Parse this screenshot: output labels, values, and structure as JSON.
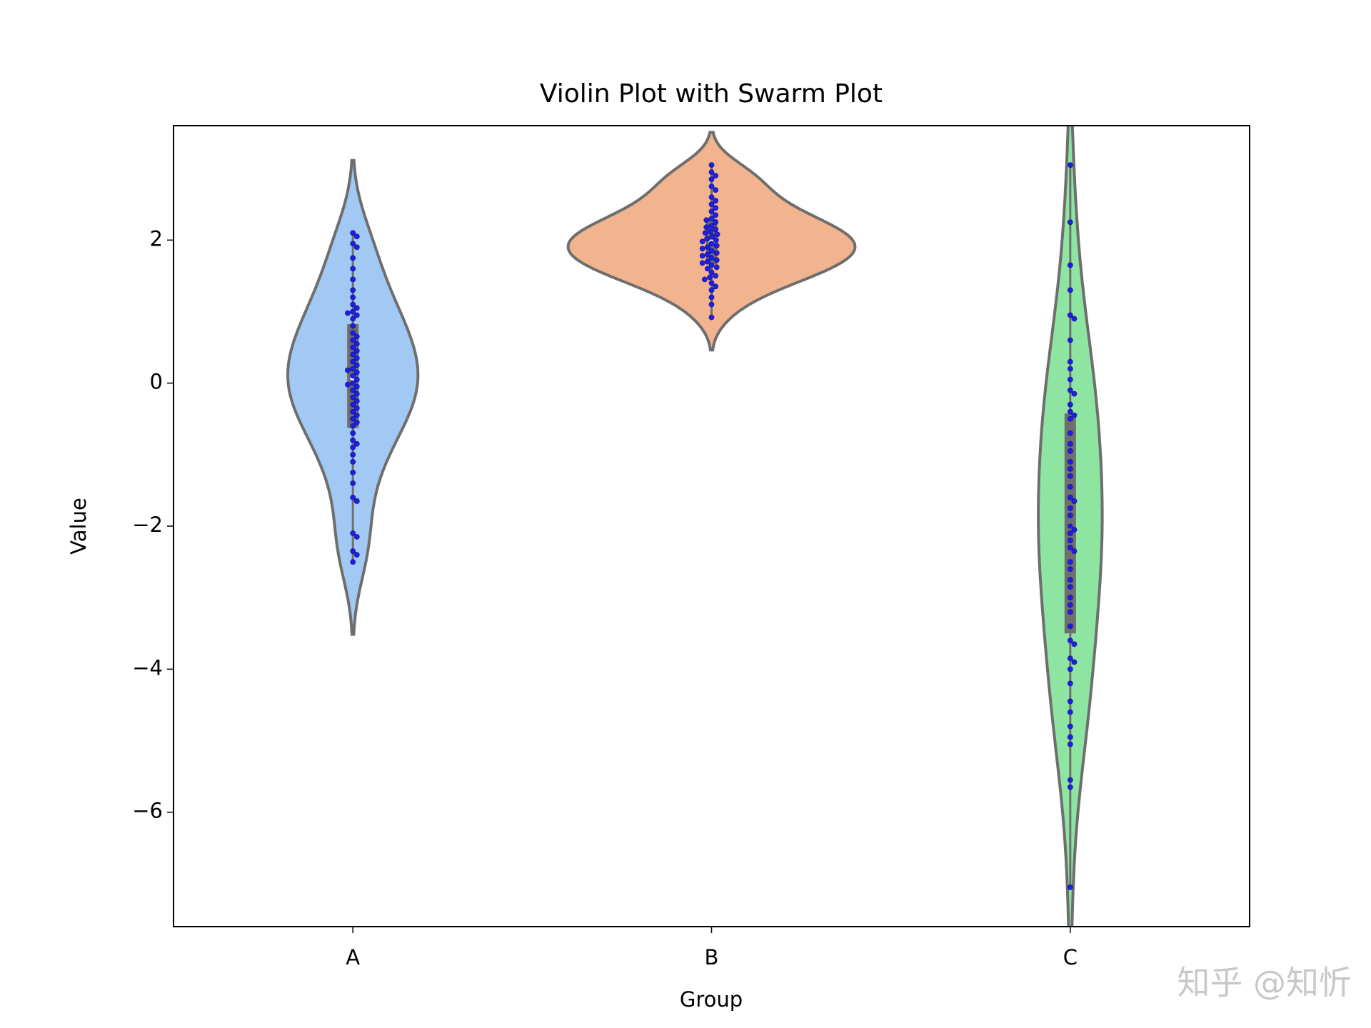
{
  "chart_data": {
    "type": "violin",
    "title": "Violin Plot with Swarm Plot",
    "x_label": "Group",
    "y_label": "Value",
    "categories": [
      "A",
      "B",
      "C"
    ],
    "series": [
      {
        "name": "A",
        "color": "#a1c9f4",
        "values": [
          2.1,
          2.05,
          1.95,
          1.9,
          1.75,
          1.6,
          1.45,
          1.3,
          1.2,
          1.1,
          1.05,
          1.0,
          0.98,
          0.95,
          0.9,
          0.8,
          0.7,
          0.65,
          0.6,
          0.55,
          0.5,
          0.45,
          0.4,
          0.35,
          0.3,
          0.25,
          0.2,
          0.18,
          0.15,
          0.1,
          0.05,
          0.0,
          -0.02,
          -0.05,
          -0.1,
          -0.15,
          -0.2,
          -0.25,
          -0.3,
          -0.35,
          -0.4,
          -0.45,
          -0.5,
          -0.55,
          -0.6,
          -0.7,
          -0.8,
          -0.85,
          -0.9,
          -1.0,
          -1.1,
          -1.25,
          -1.4,
          -1.6,
          -1.65,
          -2.1,
          -2.15,
          -2.35,
          -2.4,
          -2.5
        ]
      },
      {
        "name": "B",
        "color": "#f2b48e",
        "values": [
          3.05,
          2.95,
          2.9,
          2.85,
          2.75,
          2.7,
          2.6,
          2.55,
          2.5,
          2.45,
          2.4,
          2.35,
          2.3,
          2.28,
          2.25,
          2.2,
          2.18,
          2.15,
          2.12,
          2.1,
          2.08,
          2.05,
          2.02,
          2.0,
          1.98,
          1.95,
          1.92,
          1.9,
          1.88,
          1.85,
          1.82,
          1.8,
          1.78,
          1.75,
          1.72,
          1.7,
          1.68,
          1.65,
          1.62,
          1.6,
          1.55,
          1.5,
          1.48,
          1.45,
          1.4,
          1.35,
          1.3,
          1.2,
          1.1,
          0.92
        ]
      },
      {
        "name": "C",
        "color": "#8de5a1",
        "values": [
          3.05,
          2.25,
          1.65,
          1.3,
          0.95,
          0.9,
          0.6,
          0.3,
          0.2,
          0.05,
          -0.1,
          -0.15,
          -0.3,
          -0.4,
          -0.45,
          -0.5,
          -0.7,
          -0.85,
          -0.95,
          -1.1,
          -1.2,
          -1.3,
          -1.45,
          -1.6,
          -1.65,
          -1.75,
          -1.85,
          -2.0,
          -2.05,
          -2.1,
          -2.2,
          -2.3,
          -2.35,
          -2.5,
          -2.6,
          -2.75,
          -2.85,
          -3.0,
          -3.1,
          -3.2,
          -3.4,
          -3.6,
          -3.65,
          -3.85,
          -3.9,
          -4.0,
          -4.2,
          -4.45,
          -4.6,
          -4.8,
          -4.95,
          -5.05,
          -5.55,
          -5.65,
          -7.05
        ]
      }
    ],
    "point_color": "#1f1fe0",
    "edge_color": "#6e6e6e",
    "ylim": [
      -7.6,
      3.6
    ],
    "yticks": [
      {
        "value": -6,
        "label": "−6"
      },
      {
        "value": -4,
        "label": "−4"
      },
      {
        "value": -2,
        "label": "−2"
      },
      0,
      2
    ],
    "watermark": "知乎 @知忻"
  }
}
